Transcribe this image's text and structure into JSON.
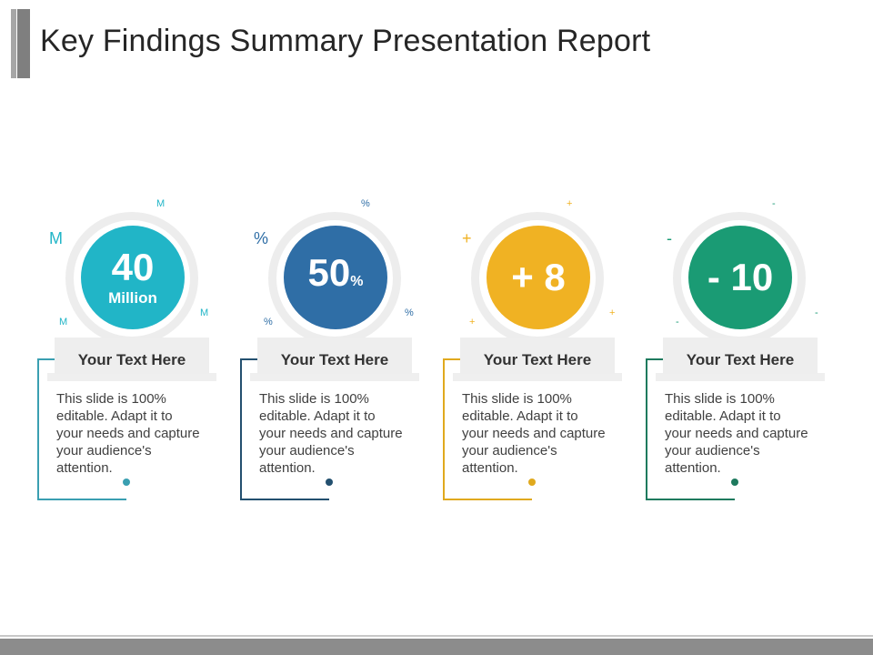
{
  "title": "Key Findings Summary Presentation Report",
  "items": [
    {
      "value": "40",
      "unit_label": "Million",
      "suffix": "",
      "deco_symbol": "M",
      "color": "#21b5c7",
      "line_color": "#3a9fb1",
      "heading": "Your Text Here",
      "body": "This slide is 100% editable. Adapt it to your needs and capture your audience's attention."
    },
    {
      "value": "50",
      "unit_label": "",
      "suffix": "%",
      "deco_symbol": "%",
      "color": "#2f6ea6",
      "line_color": "#23506f",
      "heading": "Your Text Here",
      "body": "This slide is 100% editable. Adapt it to your needs and capture your audience's attention."
    },
    {
      "value": "+ 8",
      "unit_label": "",
      "suffix": "",
      "deco_symbol": "+",
      "color": "#f0b223",
      "line_color": "#e0a91e",
      "heading": "Your Text Here",
      "body": "This slide is 100% editable. Adapt it to your needs and capture your audience's attention."
    },
    {
      "value": "- 10",
      "unit_label": "",
      "suffix": "",
      "deco_symbol": "-",
      "color": "#1a9b74",
      "line_color": "#1e7a5e",
      "heading": "Your Text Here",
      "body": "This slide is 100% editable. Adapt it to your needs and capture your audience's attention."
    }
  ]
}
